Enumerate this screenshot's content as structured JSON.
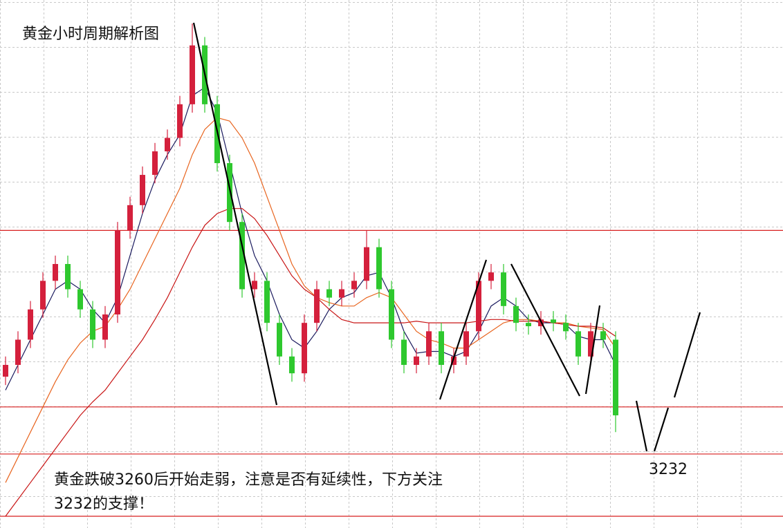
{
  "chart_data": {
    "type": "candlestick",
    "title": "黄金小时周期解析图",
    "annotation": [
      "黄金跌破3260后开始走弱，注意是否有延续性，下方关注",
      "3232的支撑！"
    ],
    "ylim": [
      3188,
      3502
    ],
    "grid": true,
    "up_color": "#d4203c",
    "down_color": "#2ec82e",
    "levels": [
      3365,
      3260,
      3232,
      3195
    ],
    "level_color": "#d81e1e",
    "open": [
      3278,
      3285,
      3300,
      3318,
      3335,
      3345,
      3330,
      3318,
      3300,
      3315,
      3365,
      3380,
      3398,
      3412,
      3420,
      3440,
      3475,
      3440,
      3405,
      3370,
      3330,
      3335,
      3310,
      3290,
      3280,
      3310,
      3330,
      3325,
      3330,
      3335,
      3355,
      3330,
      3300,
      3285,
      3290,
      3305,
      3285,
      3290,
      3305,
      3335,
      3340,
      3320,
      3310,
      3308,
      3312,
      3310,
      3305,
      3290,
      3305,
      3300
    ],
    "high": [
      3290,
      3305,
      3323,
      3340,
      3350,
      3350,
      3335,
      3323,
      3320,
      3370,
      3385,
      3403,
      3417,
      3425,
      3445,
      3488,
      3480,
      3445,
      3410,
      3375,
      3340,
      3340,
      3315,
      3295,
      3315,
      3335,
      3335,
      3335,
      3340,
      3365,
      3360,
      3335,
      3305,
      3295,
      3310,
      3310,
      3295,
      3310,
      3340,
      3345,
      3345,
      3325,
      3315,
      3317,
      3317,
      3315,
      3310,
      3310,
      3310,
      3305
    ],
    "low": [
      3273,
      3280,
      3295,
      3313,
      3330,
      3325,
      3313,
      3295,
      3295,
      3310,
      3360,
      3375,
      3393,
      3407,
      3415,
      3435,
      3435,
      3400,
      3365,
      3325,
      3325,
      3305,
      3285,
      3275,
      3275,
      3305,
      3320,
      3320,
      3325,
      3330,
      3325,
      3295,
      3280,
      3280,
      3285,
      3280,
      3280,
      3285,
      3300,
      3330,
      3315,
      3305,
      3303,
      3303,
      3305,
      3300,
      3285,
      3285,
      3295,
      3245
    ],
    "close": [
      3285,
      3300,
      3318,
      3335,
      3345,
      3330,
      3318,
      3300,
      3315,
      3365,
      3380,
      3398,
      3412,
      3420,
      3440,
      3475,
      3440,
      3405,
      3370,
      3330,
      3335,
      3310,
      3290,
      3280,
      3310,
      3330,
      3325,
      3330,
      3335,
      3355,
      3330,
      3300,
      3285,
      3290,
      3305,
      3285,
      3290,
      3305,
      3335,
      3340,
      3320,
      3310,
      3308,
      3312,
      3310,
      3305,
      3290,
      3305,
      3300,
      3255
    ],
    "series": [
      {
        "color": "#1a1a5e",
        "values": [
          3270,
          3285,
          3300,
          3315,
          3330,
          3335,
          3330,
          3318,
          3310,
          3325,
          3350,
          3375,
          3395,
          3410,
          3422,
          3445,
          3450,
          3435,
          3405,
          3375,
          3350,
          3335,
          3315,
          3300,
          3295,
          3305,
          3318,
          3325,
          3328,
          3338,
          3340,
          3325,
          3305,
          3292,
          3293,
          3293,
          3290,
          3293,
          3305,
          3320,
          3325,
          3320,
          3312,
          3310,
          3310,
          3309,
          3302,
          3300,
          3300,
          3285
        ]
      },
      {
        "color": "#e8641e",
        "values": [
          3215,
          3230,
          3245,
          3260,
          3275,
          3288,
          3298,
          3305,
          3308,
          3318,
          3330,
          3345,
          3360,
          3375,
          3390,
          3410,
          3425,
          3432,
          3430,
          3420,
          3405,
          3385,
          3365,
          3345,
          3332,
          3325,
          3322,
          3320,
          3320,
          3325,
          3328,
          3325,
          3315,
          3305,
          3300,
          3298,
          3295,
          3295,
          3300,
          3305,
          3310,
          3312,
          3312,
          3311,
          3310,
          3310,
          3308,
          3307,
          3306,
          3295
        ]
      },
      {
        "color": "#c81414",
        "values": [
          3195,
          3205,
          3215,
          3225,
          3235,
          3245,
          3255,
          3263,
          3270,
          3280,
          3290,
          3300,
          3312,
          3325,
          3340,
          3355,
          3368,
          3375,
          3378,
          3378,
          3372,
          3362,
          3350,
          3338,
          3330,
          3325,
          3318,
          3312,
          3310,
          3310,
          3310,
          3310,
          3310,
          3311,
          3310,
          3310,
          3310,
          3310,
          3311,
          3312,
          3312,
          3311,
          3311,
          3311,
          3310,
          3309,
          3308,
          3308,
          3307,
          3302
        ]
      }
    ]
  }
}
